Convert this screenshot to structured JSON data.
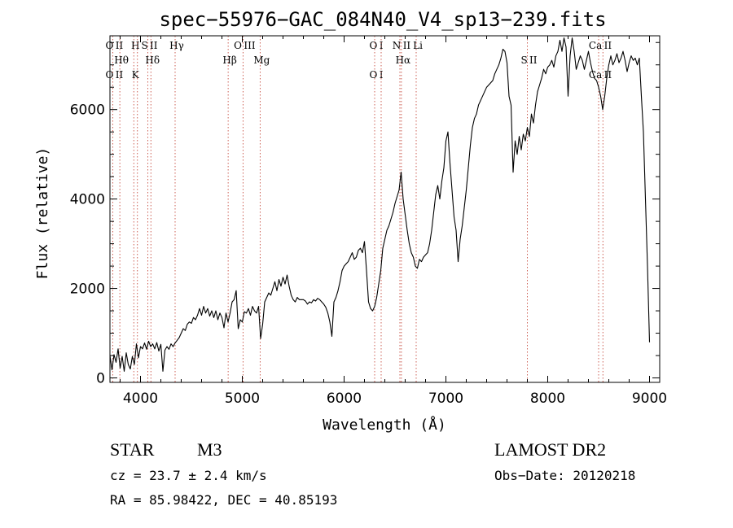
{
  "chart_data": {
    "type": "line",
    "title": "spec−55976−GAC_084N40_V4_sp13−239.fits",
    "xlabel": "Wavelength (Å)",
    "ylabel": "Flux (relative)",
    "xlim": [
      3700,
      9100
    ],
    "ylim": [
      -100,
      7650
    ],
    "xticks": [
      4000,
      5000,
      6000,
      7000,
      8000,
      9000
    ],
    "yticks": [
      0,
      2000,
      4000,
      6000
    ],
    "grid": false,
    "series": [
      {
        "values": [
          [
            3700,
            500
          ],
          [
            3720,
            180
          ],
          [
            3740,
            520
          ],
          [
            3760,
            350
          ],
          [
            3780,
            650
          ],
          [
            3800,
            220
          ],
          [
            3820,
            480
          ],
          [
            3840,
            150
          ],
          [
            3860,
            560
          ],
          [
            3880,
            300
          ],
          [
            3900,
            200
          ],
          [
            3920,
            480
          ],
          [
            3940,
            300
          ],
          [
            3960,
            760
          ],
          [
            3980,
            450
          ],
          [
            4000,
            700
          ],
          [
            4020,
            650
          ],
          [
            4040,
            780
          ],
          [
            4060,
            640
          ],
          [
            4080,
            820
          ],
          [
            4100,
            700
          ],
          [
            4120,
            760
          ],
          [
            4140,
            650
          ],
          [
            4160,
            790
          ],
          [
            4180,
            600
          ],
          [
            4200,
            750
          ],
          [
            4220,
            150
          ],
          [
            4240,
            620
          ],
          [
            4260,
            700
          ],
          [
            4280,
            640
          ],
          [
            4300,
            760
          ],
          [
            4320,
            700
          ],
          [
            4340,
            780
          ],
          [
            4360,
            840
          ],
          [
            4380,
            900
          ],
          [
            4400,
            1000
          ],
          [
            4420,
            1100
          ],
          [
            4440,
            1060
          ],
          [
            4460,
            1200
          ],
          [
            4480,
            1250
          ],
          [
            4500,
            1220
          ],
          [
            4520,
            1350
          ],
          [
            4540,
            1300
          ],
          [
            4560,
            1400
          ],
          [
            4580,
            1550
          ],
          [
            4600,
            1400
          ],
          [
            4620,
            1600
          ],
          [
            4640,
            1450
          ],
          [
            4660,
            1550
          ],
          [
            4680,
            1380
          ],
          [
            4700,
            1500
          ],
          [
            4720,
            1350
          ],
          [
            4740,
            1500
          ],
          [
            4760,
            1300
          ],
          [
            4780,
            1450
          ],
          [
            4800,
            1350
          ],
          [
            4820,
            1120
          ],
          [
            4840,
            1450
          ],
          [
            4860,
            1250
          ],
          [
            4880,
            1450
          ],
          [
            4900,
            1700
          ],
          [
            4920,
            1750
          ],
          [
            4940,
            1950
          ],
          [
            4960,
            1100
          ],
          [
            4980,
            1300
          ],
          [
            5000,
            1250
          ],
          [
            5020,
            1480
          ],
          [
            5040,
            1450
          ],
          [
            5060,
            1550
          ],
          [
            5080,
            1400
          ],
          [
            5100,
            1600
          ],
          [
            5120,
            1500
          ],
          [
            5140,
            1450
          ],
          [
            5160,
            1600
          ],
          [
            5180,
            880
          ],
          [
            5200,
            1200
          ],
          [
            5220,
            1700
          ],
          [
            5240,
            1800
          ],
          [
            5260,
            1900
          ],
          [
            5280,
            1850
          ],
          [
            5300,
            2000
          ],
          [
            5320,
            2150
          ],
          [
            5340,
            1950
          ],
          [
            5360,
            2200
          ],
          [
            5380,
            2050
          ],
          [
            5400,
            2250
          ],
          [
            5420,
            2100
          ],
          [
            5440,
            2300
          ],
          [
            5460,
            2050
          ],
          [
            5480,
            1850
          ],
          [
            5500,
            1750
          ],
          [
            5520,
            1700
          ],
          [
            5540,
            1800
          ],
          [
            5560,
            1750
          ],
          [
            5580,
            1750
          ],
          [
            5600,
            1750
          ],
          [
            5620,
            1720
          ],
          [
            5640,
            1650
          ],
          [
            5660,
            1700
          ],
          [
            5680,
            1680
          ],
          [
            5700,
            1750
          ],
          [
            5720,
            1720
          ],
          [
            5740,
            1780
          ],
          [
            5760,
            1750
          ],
          [
            5780,
            1700
          ],
          [
            5800,
            1650
          ],
          [
            5820,
            1580
          ],
          [
            5840,
            1450
          ],
          [
            5860,
            1250
          ],
          [
            5880,
            930
          ],
          [
            5900,
            1700
          ],
          [
            5920,
            1800
          ],
          [
            5940,
            1950
          ],
          [
            5960,
            2150
          ],
          [
            5980,
            2400
          ],
          [
            6000,
            2500
          ],
          [
            6020,
            2550
          ],
          [
            6040,
            2600
          ],
          [
            6060,
            2700
          ],
          [
            6080,
            2800
          ],
          [
            6100,
            2650
          ],
          [
            6120,
            2700
          ],
          [
            6140,
            2850
          ],
          [
            6160,
            2900
          ],
          [
            6180,
            2800
          ],
          [
            6200,
            3050
          ],
          [
            6220,
            2400
          ],
          [
            6240,
            1700
          ],
          [
            6260,
            1550
          ],
          [
            6280,
            1500
          ],
          [
            6300,
            1600
          ],
          [
            6320,
            1800
          ],
          [
            6340,
            2100
          ],
          [
            6360,
            2400
          ],
          [
            6380,
            2900
          ],
          [
            6400,
            3100
          ],
          [
            6420,
            3300
          ],
          [
            6440,
            3400
          ],
          [
            6460,
            3550
          ],
          [
            6480,
            3700
          ],
          [
            6500,
            3900
          ],
          [
            6520,
            4050
          ],
          [
            6540,
            4200
          ],
          [
            6560,
            4600
          ],
          [
            6580,
            4000
          ],
          [
            6600,
            3650
          ],
          [
            6620,
            3300
          ],
          [
            6640,
            3000
          ],
          [
            6660,
            2800
          ],
          [
            6680,
            2700
          ],
          [
            6700,
            2500
          ],
          [
            6720,
            2450
          ],
          [
            6740,
            2650
          ],
          [
            6760,
            2600
          ],
          [
            6780,
            2700
          ],
          [
            6800,
            2750
          ],
          [
            6820,
            2800
          ],
          [
            6840,
            3000
          ],
          [
            6860,
            3300
          ],
          [
            6880,
            3700
          ],
          [
            6900,
            4100
          ],
          [
            6920,
            4300
          ],
          [
            6940,
            4000
          ],
          [
            6960,
            4400
          ],
          [
            6980,
            4700
          ],
          [
            7000,
            5300
          ],
          [
            7020,
            5500
          ],
          [
            7040,
            4800
          ],
          [
            7060,
            4200
          ],
          [
            7080,
            3600
          ],
          [
            7100,
            3300
          ],
          [
            7120,
            2600
          ],
          [
            7140,
            3100
          ],
          [
            7160,
            3400
          ],
          [
            7180,
            3800
          ],
          [
            7200,
            4200
          ],
          [
            7220,
            4700
          ],
          [
            7240,
            5200
          ],
          [
            7260,
            5600
          ],
          [
            7280,
            5800
          ],
          [
            7300,
            5900
          ],
          [
            7320,
            6100
          ],
          [
            7340,
            6200
          ],
          [
            7360,
            6300
          ],
          [
            7380,
            6400
          ],
          [
            7400,
            6500
          ],
          [
            7420,
            6550
          ],
          [
            7440,
            6600
          ],
          [
            7460,
            6650
          ],
          [
            7480,
            6800
          ],
          [
            7500,
            6900
          ],
          [
            7520,
            7000
          ],
          [
            7540,
            7150
          ],
          [
            7560,
            7350
          ],
          [
            7580,
            7300
          ],
          [
            7600,
            7050
          ],
          [
            7620,
            6300
          ],
          [
            7640,
            6100
          ],
          [
            7660,
            4600
          ],
          [
            7680,
            5300
          ],
          [
            7700,
            5000
          ],
          [
            7720,
            5400
          ],
          [
            7740,
            5100
          ],
          [
            7760,
            5450
          ],
          [
            7780,
            5300
          ],
          [
            7800,
            5600
          ],
          [
            7820,
            5400
          ],
          [
            7840,
            5900
          ],
          [
            7860,
            5700
          ],
          [
            7880,
            6100
          ],
          [
            7900,
            6400
          ],
          [
            7920,
            6550
          ],
          [
            7940,
            6700
          ],
          [
            7960,
            6900
          ],
          [
            7980,
            6800
          ],
          [
            8000,
            6950
          ],
          [
            8020,
            7000
          ],
          [
            8040,
            7100
          ],
          [
            8060,
            6950
          ],
          [
            8080,
            7200
          ],
          [
            8100,
            7300
          ],
          [
            8120,
            7550
          ],
          [
            8140,
            7300
          ],
          [
            8160,
            7600
          ],
          [
            8180,
            7400
          ],
          [
            8200,
            6300
          ],
          [
            8220,
            7200
          ],
          [
            8240,
            7600
          ],
          [
            8260,
            7300
          ],
          [
            8280,
            6900
          ],
          [
            8300,
            7050
          ],
          [
            8320,
            7200
          ],
          [
            8340,
            7100
          ],
          [
            8360,
            6900
          ],
          [
            8380,
            7100
          ],
          [
            8400,
            7300
          ],
          [
            8420,
            7050
          ],
          [
            8440,
            6850
          ],
          [
            8460,
            6700
          ],
          [
            8480,
            6650
          ],
          [
            8500,
            6500
          ],
          [
            8520,
            6300
          ],
          [
            8540,
            6000
          ],
          [
            8560,
            6300
          ],
          [
            8580,
            6700
          ],
          [
            8600,
            7000
          ],
          [
            8620,
            7200
          ],
          [
            8640,
            7000
          ],
          [
            8660,
            7100
          ],
          [
            8680,
            7250
          ],
          [
            8700,
            7050
          ],
          [
            8720,
            7150
          ],
          [
            8740,
            7300
          ],
          [
            8760,
            7100
          ],
          [
            8780,
            6850
          ],
          [
            8800,
            7050
          ],
          [
            8820,
            7200
          ],
          [
            8840,
            7100
          ],
          [
            8860,
            7150
          ],
          [
            8880,
            7000
          ],
          [
            8900,
            7150
          ],
          [
            8920,
            6300
          ],
          [
            8940,
            5500
          ],
          [
            8960,
            4000
          ],
          [
            8980,
            2500
          ],
          [
            9000,
            800
          ]
        ]
      }
    ],
    "lines": [
      {
        "x": 3727,
        "upper": "O II",
        "lower": "O II"
      },
      {
        "x": 3797,
        "upper": "Hθ"
      },
      {
        "x": 3934,
        "upper": "H",
        "lower": "K"
      },
      {
        "x": 3970,
        "upper": ""
      },
      {
        "x": 4072,
        "upper": "S II"
      },
      {
        "x": 4102,
        "upper": "Hδ"
      },
      {
        "x": 4340,
        "upper": "Hγ"
      },
      {
        "x": 4861,
        "upper": "Hβ"
      },
      {
        "x": 5007,
        "upper": "O III"
      },
      {
        "x": 5175,
        "upper": "Mg"
      },
      {
        "x": 6300,
        "upper": "O I",
        "lower": "O I"
      },
      {
        "x": 6364,
        "upper": ""
      },
      {
        "x": 6548,
        "upper": "N II"
      },
      {
        "x": 6563,
        "upper": "Hα"
      },
      {
        "x": 6708,
        "upper": "Li"
      },
      {
        "x": 7800,
        "upper": "S II"
      },
      {
        "x": 8500,
        "upper": "Ca II",
        "lower": "Ca II"
      },
      {
        "x": 8542,
        "upper": ""
      }
    ]
  },
  "info": {
    "object_class": "STAR",
    "subclass": "M3",
    "survey": "LAMOST DR2",
    "cz": "cz = 23.7 ± 2.4 km/s",
    "obs_date": "Obs−Date: 20120218",
    "coords": "RA =  85.98422, DEC =  40.85193"
  }
}
